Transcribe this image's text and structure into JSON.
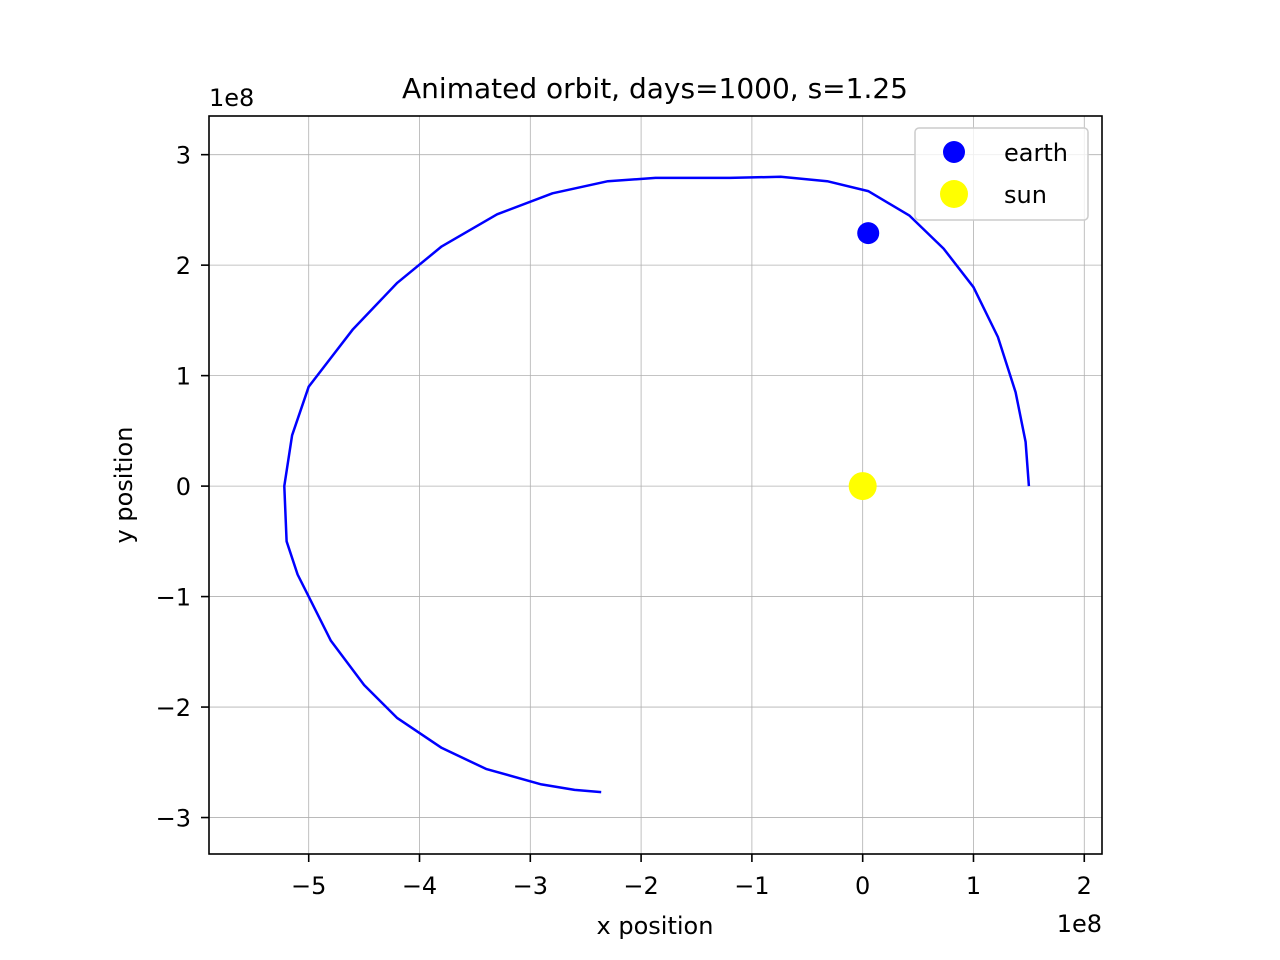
{
  "chart_data": {
    "type": "line",
    "title": "Animated orbit, days=1000, s=1.25",
    "xlabel": "x position",
    "ylabel": "y position",
    "x_offset_label": "1e8",
    "y_offset_label": "1e8",
    "xlim": [
      -5.9,
      2.16
    ],
    "ylim": [
      -3.33,
      3.35
    ],
    "x_ticks": [
      {
        "value": -5,
        "label": "−5"
      },
      {
        "value": -4,
        "label": "−4"
      },
      {
        "value": -3,
        "label": "−3"
      },
      {
        "value": -2,
        "label": "−2"
      },
      {
        "value": -1,
        "label": "−1"
      },
      {
        "value": 0,
        "label": "0"
      },
      {
        "value": 1,
        "label": "1"
      },
      {
        "value": 2,
        "label": "2"
      }
    ],
    "y_ticks": [
      {
        "value": 3,
        "label": "3"
      },
      {
        "value": 2,
        "label": "2"
      },
      {
        "value": 1,
        "label": "1"
      },
      {
        "value": 0,
        "label": "0"
      },
      {
        "value": -1,
        "label": "−1"
      },
      {
        "value": -2,
        "label": "−2"
      },
      {
        "value": -3,
        "label": "−3"
      }
    ],
    "grid": true,
    "legend_position": "top-right",
    "orbit": {
      "color": "#0000ff",
      "x": [
        1.5,
        1.47,
        1.38,
        1.22,
        1.0,
        0.73,
        0.42,
        0.05,
        -0.32,
        -0.74,
        -1.2,
        -1.6,
        -1.87,
        -2.3,
        -2.8,
        -3.3,
        -3.8,
        -4.2,
        -4.6,
        -4.8,
        -5.0,
        -5.15,
        -5.22,
        -5.2,
        -5.1,
        -5.0,
        -4.8,
        -4.5,
        -4.2,
        -3.8,
        -3.4,
        -2.9,
        -2.6,
        -2.36
      ],
      "y": [
        0.0,
        0.4,
        0.85,
        1.35,
        1.8,
        2.15,
        2.45,
        2.67,
        2.76,
        2.8,
        2.79,
        2.79,
        2.79,
        2.76,
        2.65,
        2.46,
        2.17,
        1.84,
        1.42,
        1.16,
        0.9,
        0.46,
        0.0,
        -0.5,
        -0.8,
        -1.0,
        -1.4,
        -1.8,
        -2.1,
        -2.37,
        -2.56,
        -2.7,
        -2.75,
        -2.77
      ]
    },
    "series": [
      {
        "name": "earth",
        "color": "#0000ff",
        "x": [
          0.05
        ],
        "y": [
          2.29
        ]
      },
      {
        "name": "sun",
        "color": "#ffff00",
        "x": [
          0.0
        ],
        "y": [
          0.0
        ]
      }
    ]
  }
}
